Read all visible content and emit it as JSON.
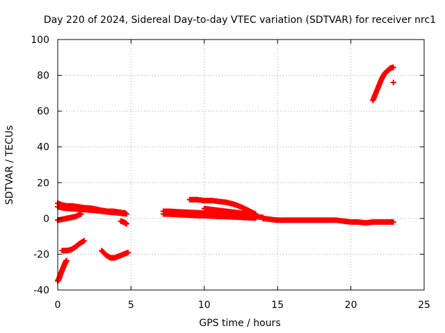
{
  "chart_data": {
    "type": "scatter",
    "title": "Day 220 of 2024, Sidereal Day-to-day VTEC variation (SDTVAR) for receiver nrc1",
    "xlabel": "GPS time / hours",
    "ylabel": "SDTVAR / TECUs",
    "xlim": [
      0,
      25
    ],
    "ylim": [
      -40,
      100
    ],
    "xticks": [
      "0",
      "5",
      "10",
      "15",
      "20",
      "25"
    ],
    "yticks": [
      "-40",
      "-20",
      "0",
      "20",
      "40",
      "60",
      "80",
      "100"
    ],
    "grid": true,
    "marker_color": "#ff0000",
    "series": [
      {
        "name": "upper-early",
        "x": [
          0.0,
          0.3,
          0.6,
          1.0,
          1.4,
          1.8,
          2.2,
          2.6,
          3.0,
          3.4,
          3.8,
          4.2,
          4.6
        ],
        "y": [
          8.5,
          7.5,
          7.0,
          7.0,
          6.5,
          6.0,
          5.8,
          5.2,
          4.5,
          4.0,
          4.0,
          3.5,
          3.0
        ]
      },
      {
        "name": "upper-early-b",
        "x": [
          0.0,
          0.4,
          0.8,
          1.2,
          1.6,
          2.0,
          2.4,
          2.8,
          3.2,
          3.6,
          4.0,
          4.4,
          4.7
        ],
        "y": [
          6.5,
          5.8,
          5.5,
          5.3,
          5.0,
          4.8,
          4.5,
          4.2,
          3.8,
          3.5,
          3.2,
          2.8,
          2.5
        ]
      },
      {
        "name": "low-early",
        "x": [
          0.0,
          0.3,
          0.6,
          0.9,
          1.2,
          1.6
        ],
        "y": [
          -1.0,
          -0.5,
          0.0,
          0.5,
          1.0,
          2.5
        ]
      },
      {
        "name": "dip-point",
        "x": [
          4.3,
          4.5,
          4.7
        ],
        "y": [
          -1.5,
          -2.0,
          -3.0
        ]
      },
      {
        "name": "neg-early",
        "x": [
          0.3,
          0.6,
          0.9,
          1.2,
          1.5,
          1.8
        ],
        "y": [
          -18.0,
          -18.0,
          -17.5,
          -16.0,
          -14.0,
          -12.5
        ]
      },
      {
        "name": "neg-start",
        "x": [
          0.0,
          0.1,
          0.2,
          0.3,
          0.4,
          0.5,
          0.6
        ],
        "y": [
          -35.0,
          -33.5,
          -31.0,
          -29.0,
          -27.0,
          -25.0,
          -23.5
        ]
      },
      {
        "name": "neg-mid",
        "x": [
          3.0,
          3.3,
          3.6,
          3.9,
          4.2,
          4.5,
          4.8
        ],
        "y": [
          -18.0,
          -20.5,
          -22.0,
          -22.0,
          -21.0,
          -20.0,
          -19.0
        ]
      },
      {
        "name": "mid-arc",
        "x": [
          9.0,
          9.5,
          10.0,
          10.5,
          11.0,
          11.5,
          12.0,
          12.5,
          13.0,
          13.5
        ],
        "y": [
          10.5,
          10.5,
          10.0,
          10.0,
          9.5,
          9.0,
          8.0,
          6.5,
          4.5,
          2.5
        ]
      },
      {
        "name": "mid-band",
        "x": [
          7.2,
          7.6,
          8.0,
          8.5,
          9.0,
          9.5,
          10.0,
          10.5,
          11.0,
          11.5,
          12.0,
          12.5,
          13.0,
          13.5,
          14.0
        ],
        "y": [
          4.0,
          4.0,
          3.8,
          3.6,
          3.4,
          3.2,
          3.0,
          2.8,
          2.6,
          2.4,
          2.2,
          1.8,
          1.4,
          1.0,
          0.6
        ]
      },
      {
        "name": "mid-band-b",
        "x": [
          7.2,
          7.6,
          8.0,
          8.5,
          9.0,
          9.5,
          10.0,
          10.5,
          11.0,
          11.5,
          12.0,
          12.5,
          13.0,
          13.5
        ],
        "y": [
          2.5,
          2.4,
          2.2,
          2.0,
          1.8,
          1.6,
          1.5,
          1.3,
          1.1,
          1.0,
          0.8,
          0.6,
          0.4,
          0.2
        ]
      },
      {
        "name": "mid-bump",
        "x": [
          10.0,
          10.5,
          11.0,
          11.5,
          12.0,
          12.5,
          13.0
        ],
        "y": [
          5.5,
          5.0,
          4.5,
          4.0,
          3.5,
          3.0,
          2.5
        ]
      },
      {
        "name": "late-band",
        "x": [
          14.0,
          14.5,
          15.0,
          15.5,
          16.0,
          16.5,
          17.0,
          17.5,
          18.0,
          18.5,
          19.0,
          19.5,
          20.0,
          20.5,
          21.0,
          21.5,
          22.0,
          22.5,
          22.9
        ],
        "y": [
          0.0,
          -0.5,
          -1.0,
          -1.0,
          -1.0,
          -1.0,
          -1.0,
          -1.0,
          -1.0,
          -1.0,
          -1.0,
          -1.5,
          -2.0,
          -2.0,
          -2.5,
          -2.0,
          -2.0,
          -2.0,
          -2.0
        ]
      },
      {
        "name": "late-rise",
        "x": [
          21.5,
          21.7,
          21.9,
          22.1,
          22.3,
          22.5,
          22.7,
          22.9
        ],
        "y": [
          66.0,
          70.0,
          74.0,
          78.0,
          81.0,
          82.5,
          84.0,
          84.5
        ]
      },
      {
        "name": "late-point",
        "x": [
          22.9
        ],
        "y": [
          76.0
        ]
      }
    ]
  }
}
